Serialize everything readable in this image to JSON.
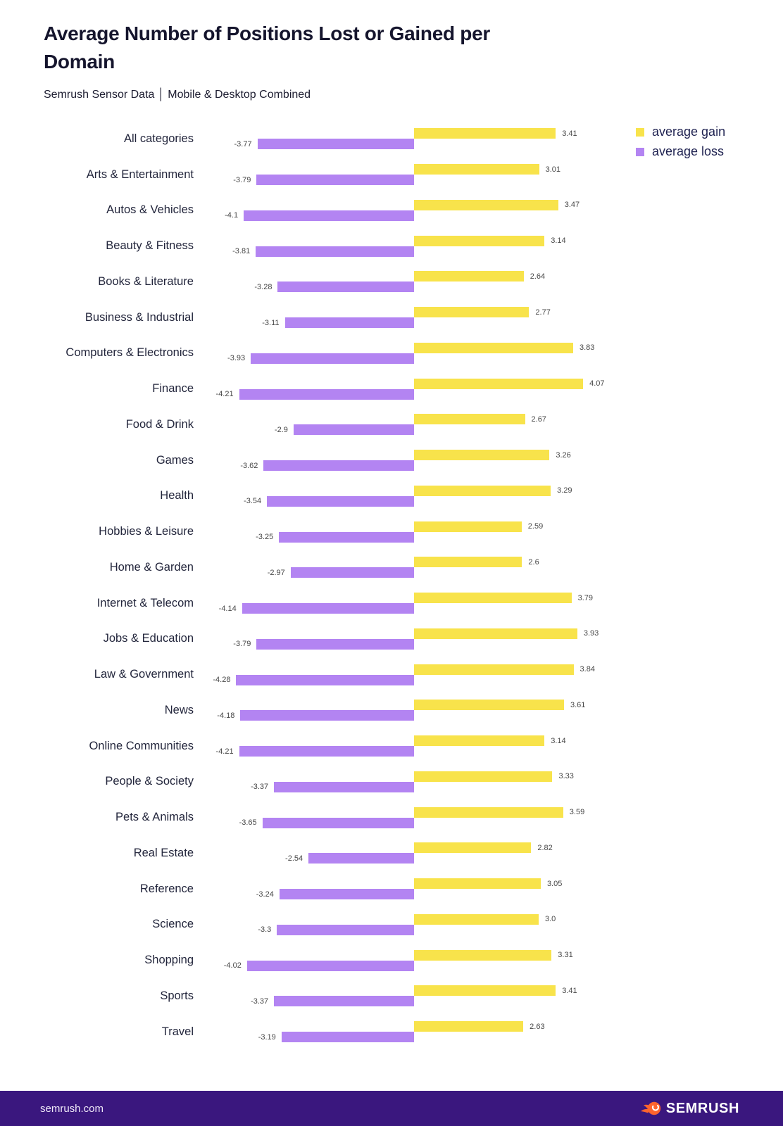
{
  "header": {
    "title": "Average Number of Positions Lost or Gained per Domain",
    "subtitle": "Semrush Sensor Data │ Mobile & Desktop Combined"
  },
  "legend": {
    "gain_label": "average gain",
    "loss_label": "average loss"
  },
  "colors": {
    "gain": "#F8E34B",
    "loss": "#B384F2",
    "footer_bg": "#3A177E",
    "brand_orange": "#FF642D"
  },
  "footer": {
    "site": "semrush.com",
    "brand": "SEMRUSH"
  },
  "chart_data": {
    "type": "bar",
    "variant": "horizontal-diverging",
    "title": "Average Number of Positions Lost or Gained per Domain",
    "subtitle": "Semrush Sensor Data │ Mobile & Desktop Combined",
    "legend_position": "top-right",
    "grid": false,
    "xlim": [
      -4.5,
      4.5
    ],
    "categories": [
      "All categories",
      "Arts & Entertainment",
      "Autos & Vehicles",
      "Beauty & Fitness",
      "Books & Literature",
      "Business & Industrial",
      "Computers & Electronics",
      "Finance",
      "Food & Drink",
      "Games",
      "Health",
      "Hobbies & Leisure",
      "Home & Garden",
      "Internet & Telecom",
      "Jobs & Education",
      "Law & Government",
      "News",
      "Online Communities",
      "People & Society",
      "Pets & Animals",
      "Real Estate",
      "Reference",
      "Science",
      "Shopping",
      "Sports",
      "Travel"
    ],
    "series": [
      {
        "name": "average gain",
        "color": "#F8E34B",
        "values": [
          3.41,
          3.01,
          3.47,
          3.14,
          2.64,
          2.77,
          3.83,
          4.07,
          2.67,
          3.26,
          3.29,
          2.59,
          2.6,
          3.79,
          3.93,
          3.84,
          3.61,
          3.14,
          3.33,
          3.59,
          2.82,
          3.05,
          3.0,
          3.31,
          3.41,
          2.63
        ],
        "labels": [
          "3.41",
          "3.01",
          "3.47",
          "3.14",
          "2.64",
          "2.77",
          "3.83",
          "4.07",
          "2.67",
          "3.26",
          "3.29",
          "2.59",
          "2.6",
          "3.79",
          "3.93",
          "3.84",
          "3.61",
          "3.14",
          "3.33",
          "3.59",
          "2.82",
          "3.05",
          "3.0",
          "3.31",
          "3.41",
          "2.63"
        ]
      },
      {
        "name": "average loss",
        "color": "#B384F2",
        "values": [
          -3.77,
          -3.79,
          -4.1,
          -3.81,
          -3.28,
          -3.11,
          -3.93,
          -4.21,
          -2.9,
          -3.62,
          -3.54,
          -3.25,
          -2.97,
          -4.14,
          -3.79,
          -4.28,
          -4.18,
          -4.21,
          -3.37,
          -3.65,
          -2.54,
          -3.24,
          -3.3,
          -4.02,
          -3.37,
          -3.19
        ],
        "labels": [
          "-3.77",
          "-3.79",
          "-4.1",
          "-3.81",
          "-3.28",
          "-3.11",
          "-3.93",
          "-4.21",
          "-2.9",
          "-3.62",
          "-3.54",
          "-3.25",
          "-2.97",
          "-4.14",
          "-3.79",
          "-4.28",
          "-4.18",
          "-4.21",
          "-3.37",
          "-3.65",
          "-2.54",
          "-3.24",
          "-3.3",
          "-4.02",
          "-3.37",
          "-3.19"
        ]
      }
    ]
  }
}
